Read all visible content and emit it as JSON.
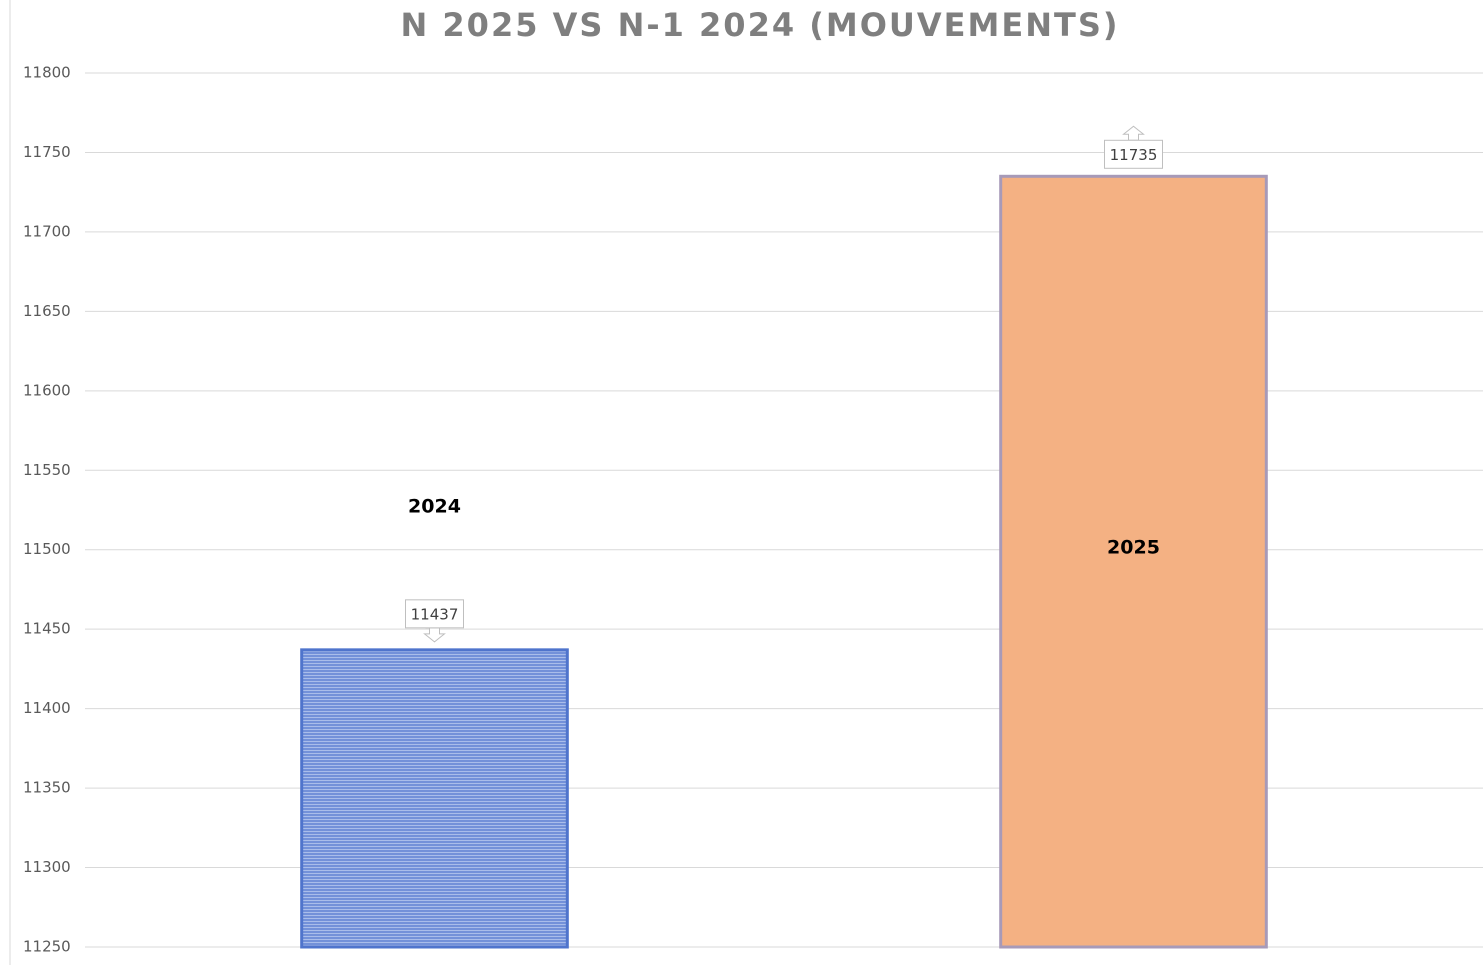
{
  "chart_data": {
    "type": "bar",
    "title": "N 2025 VS N-1 2024 (MOUVEMENTS)",
    "categories": [
      "2024",
      "2025"
    ],
    "values": [
      11437,
      11735
    ],
    "colors": [
      "#7391d9",
      "#f4b183"
    ],
    "ylim": [
      11250,
      11800
    ],
    "yticks": [
      11250,
      11300,
      11350,
      11400,
      11450,
      11500,
      11550,
      11600,
      11650,
      11700,
      11750,
      11800
    ],
    "grid": true
  }
}
